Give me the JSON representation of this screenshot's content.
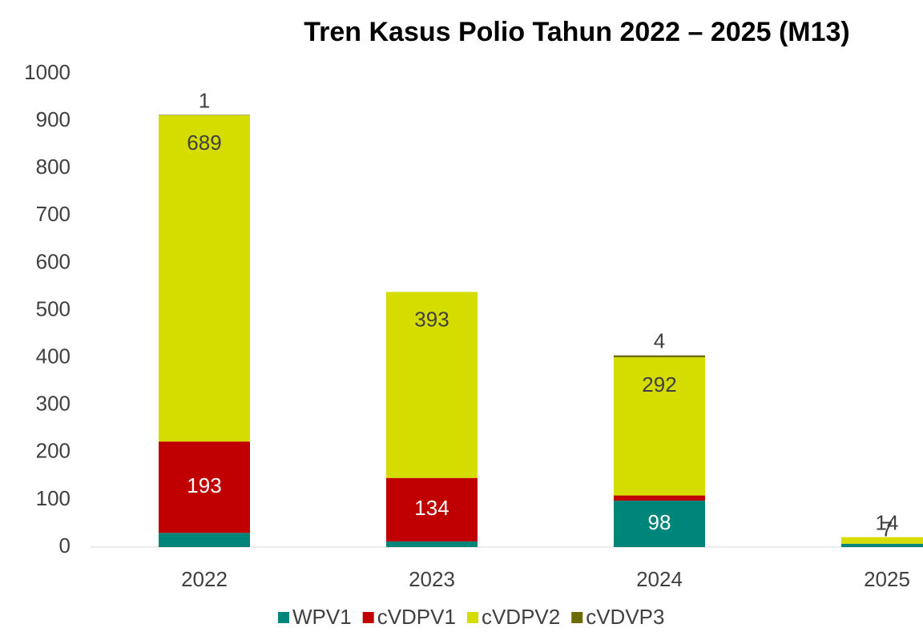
{
  "chart_data": {
    "type": "bar",
    "stacked": true,
    "title": "Tren Kasus Polio Tahun 2022 – 2025 (M13)",
    "categories": [
      "2022",
      "2023",
      "2024",
      "2025"
    ],
    "series": [
      {
        "name": "WPV1",
        "color": "#00857a",
        "values": [
          30,
          12,
          98,
          7
        ]
      },
      {
        "name": "cVDPV1",
        "color": "#c00000",
        "values": [
          193,
          134,
          11,
          null
        ]
      },
      {
        "name": "cVDPV2",
        "color": "#d4dc00",
        "values": [
          689,
          393,
          292,
          14
        ]
      },
      {
        "name": "cVDVP3",
        "color": "#6b6b00",
        "values": [
          1,
          null,
          4,
          null
        ]
      }
    ],
    "ylim": [
      0,
      1000
    ],
    "yticks": [
      0,
      100,
      200,
      300,
      400,
      500,
      600,
      700,
      800,
      900,
      1000
    ],
    "grid": false,
    "legend": "bottom"
  }
}
